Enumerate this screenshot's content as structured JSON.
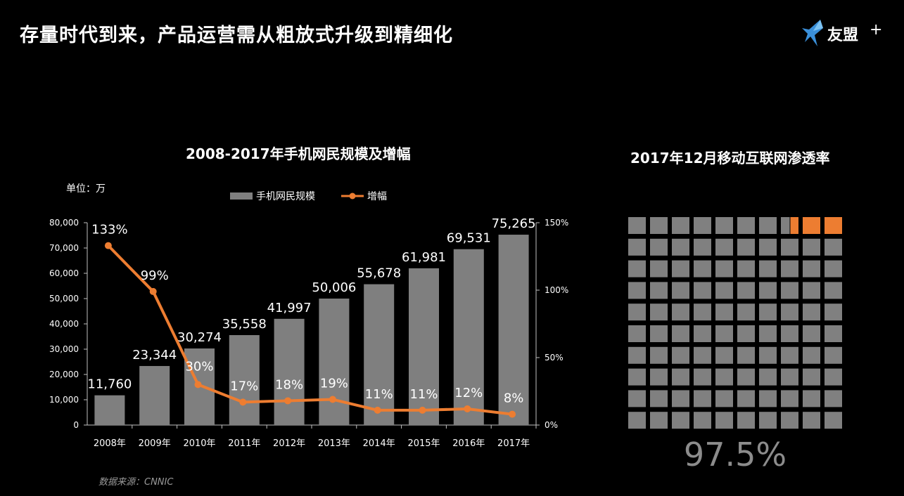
{
  "page": {
    "title": "存量时代到来，产品运营需从粗放式升级到精细化",
    "logo_text": "友盟",
    "logo_plus": "+",
    "source": "数据来源：CNNIC"
  },
  "colors": {
    "background": "#000000",
    "bar": "#7f7f7f",
    "line": "#ed7d31",
    "waffle_gray": "#808080",
    "waffle_orange": "#ed7d31"
  },
  "chart_data": [
    {
      "type": "bar",
      "title": "2008-2017年手机网民规模及增幅",
      "unit_label": "单位：万",
      "categories": [
        "2008年",
        "2009年",
        "2010年",
        "2011年",
        "2012年",
        "2013年",
        "2014年",
        "2015年",
        "2016年",
        "2017年"
      ],
      "series": [
        {
          "name": "手机网民规模",
          "type": "bar",
          "axis": "left",
          "values": [
            11760,
            23344,
            30274,
            35558,
            41997,
            50006,
            55678,
            61981,
            69531,
            75265
          ],
          "labels": [
            "11,760",
            "23,344",
            "30,274",
            "35,558",
            "41,997",
            "50,006",
            "55,678",
            "61,981",
            "69,531",
            "75,265"
          ]
        },
        {
          "name": "增幅",
          "type": "line",
          "axis": "right",
          "values": [
            133,
            99,
            30,
            17,
            18,
            19,
            11,
            11,
            12,
            8
          ],
          "labels": [
            "133%",
            "99%",
            "30%",
            "17%",
            "18%",
            "19%",
            "11%",
            "11%",
            "12%",
            "8%"
          ]
        }
      ],
      "y_left": {
        "ylim": [
          0,
          80000
        ],
        "ticks": [
          0,
          10000,
          20000,
          30000,
          40000,
          50000,
          60000,
          70000,
          80000
        ],
        "tick_labels": [
          "0",
          "10,000",
          "20,000",
          "30,000",
          "40,000",
          "50,000",
          "60,000",
          "70,000",
          "80,000"
        ]
      },
      "y_right": {
        "ylim": [
          0,
          150
        ],
        "ticks": [
          0,
          50,
          100,
          150
        ],
        "tick_labels": [
          "0%",
          "50%",
          "100%",
          "150%"
        ]
      },
      "legend": {
        "position": "top-center",
        "entries": [
          "手机网民规模",
          "增幅"
        ]
      },
      "grid": false
    },
    {
      "type": "waffle",
      "title": "2017年12月移动互联网渗透率",
      "value": 97.5,
      "value_label": "97.5%",
      "rows": 10,
      "cols": 10
    }
  ]
}
